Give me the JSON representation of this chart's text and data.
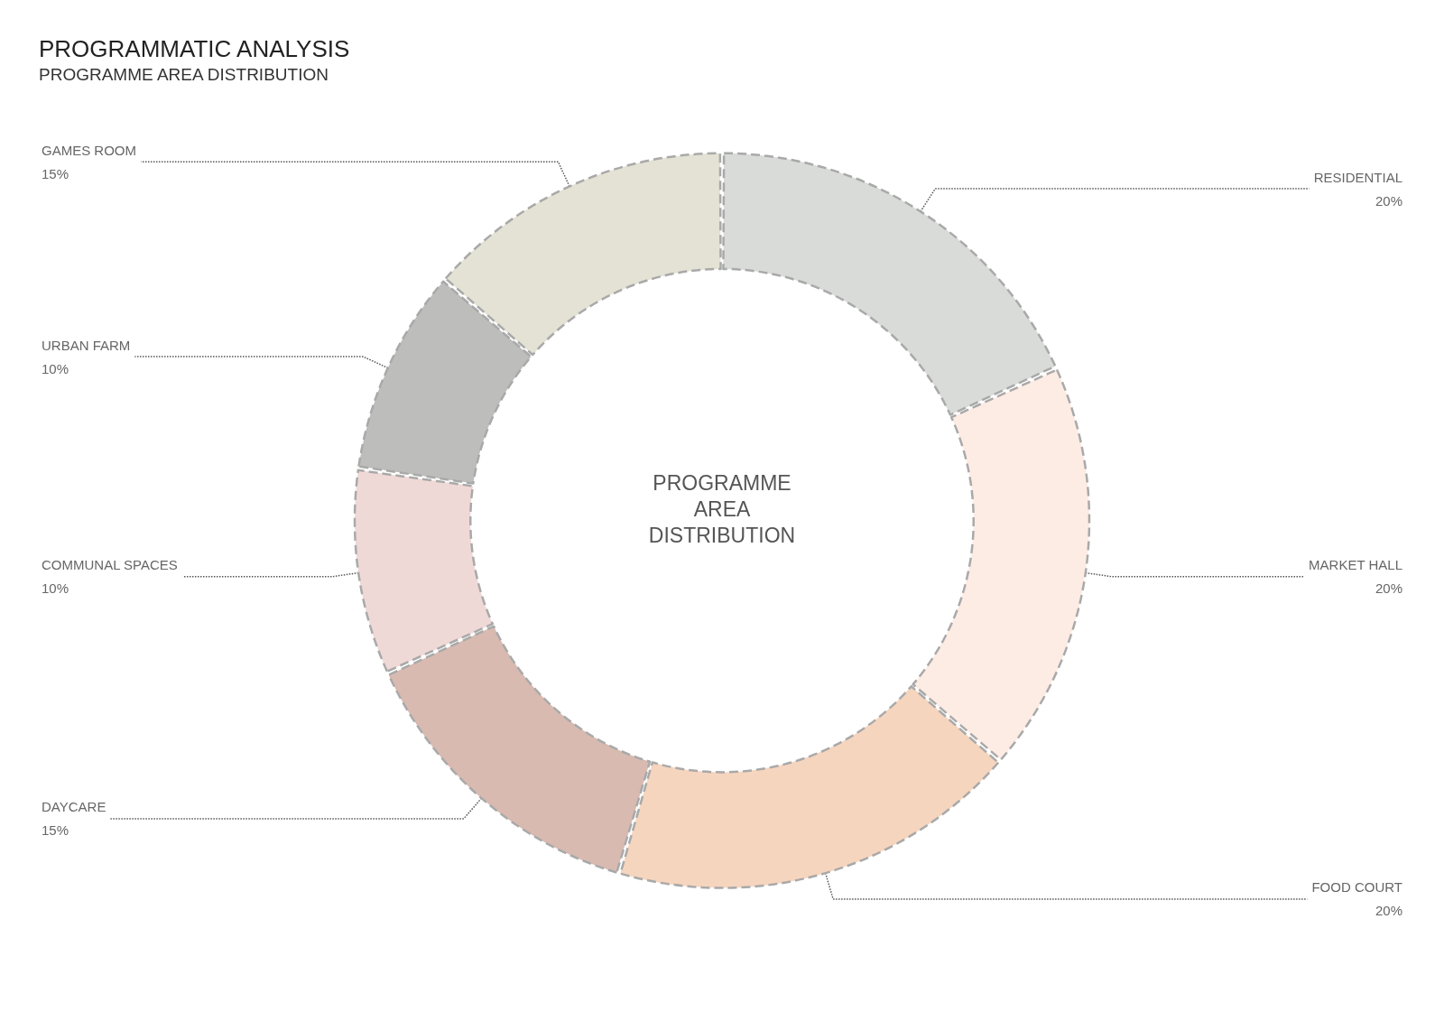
{
  "chart_data": {
    "type": "donut",
    "title": "PROGRAMMATIC ANALYSIS",
    "subtitle": "PROGRAMME AREA DISTRIBUTION",
    "categories": [
      "RESIDENTIAL",
      "MARKET HALL",
      "FOOD COURT",
      "DAYCARE",
      "COMMUNAL SPACES",
      "URBAN FARM",
      "GAMES ROOM"
    ],
    "values": [
      20,
      20,
      20,
      15,
      10,
      10,
      15
    ],
    "value_labels": [
      "20%",
      "20%",
      "20%",
      "15%",
      "10%",
      "10%",
      "15%"
    ],
    "colors": [
      "#d9dbd8",
      "#fdece4",
      "#f6d5bf",
      "#d8bab1",
      "#efd9d6",
      "#bdbdbb",
      "#e4e2d4"
    ],
    "annotations": [
      "PROGRAMME\nAREA\nDISTRIBUTION"
    ],
    "legend": false
  }
}
